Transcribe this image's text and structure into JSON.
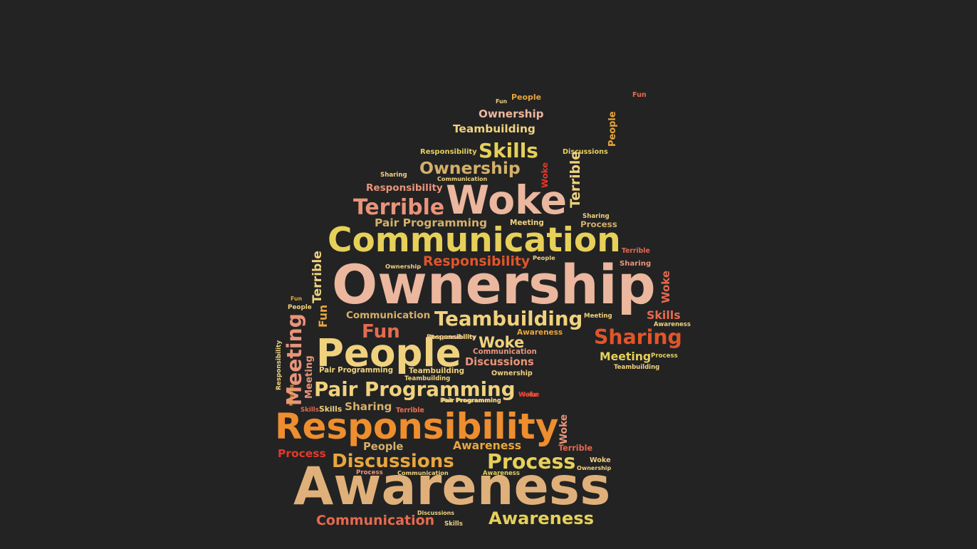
{
  "colors": {
    "background": "#232323",
    "cream": "#F0D27E",
    "yellow": "#E6D05A",
    "gold": "#E9A63C",
    "orange": "#EE8E2E",
    "burnt": "#E1552A",
    "coral": "#E56A50",
    "salmon": "#E9947A",
    "pink": "#EBB79E",
    "tan": "#E0B07A",
    "red": "#E5382B",
    "khaki": "#D4B06A"
  },
  "words": [
    {
      "text": "Awareness",
      "color": "tan"
    },
    {
      "text": "Ownership",
      "color": "pink"
    },
    {
      "text": "Responsibility",
      "color": "orange"
    },
    {
      "text": "Communication",
      "color": "yellow"
    },
    {
      "text": "People",
      "color": "cream"
    },
    {
      "text": "Woke",
      "color": "pink"
    },
    {
      "text": "Teambuilding",
      "color": "cream"
    },
    {
      "text": "Pair Programming",
      "color": "cream"
    },
    {
      "text": "Discussions",
      "color": "gold"
    },
    {
      "text": "Process",
      "color": "yellow"
    },
    {
      "text": "Sharing",
      "color": "burnt"
    },
    {
      "text": "Terrible",
      "color": "salmon"
    },
    {
      "text": "Ownership",
      "color": "khaki"
    },
    {
      "text": "Skills",
      "color": "yellow"
    },
    {
      "text": "Fun",
      "color": "coral"
    },
    {
      "text": "Meeting",
      "color": "salmon"
    },
    {
      "text": "Communication",
      "color": "coral"
    },
    {
      "text": "Awareness",
      "color": "yellow"
    },
    {
      "text": "Responsibility",
      "color": "burnt"
    },
    {
      "text": "Teambuilding",
      "color": "cream"
    },
    {
      "text": "Ownership",
      "color": "pink"
    },
    {
      "text": "Responsibility",
      "color": "salmon"
    },
    {
      "text": "Pair Programming",
      "color": "khaki"
    },
    {
      "text": "Communication",
      "color": "khaki"
    },
    {
      "text": "Discussions",
      "color": "salmon"
    },
    {
      "text": "Sharing",
      "color": "khaki"
    },
    {
      "text": "Woke",
      "color": "cream"
    },
    {
      "text": "Meeting",
      "color": "yellow"
    },
    {
      "text": "Awareness",
      "color": "gold"
    },
    {
      "text": "Skills",
      "color": "coral"
    },
    {
      "text": "People",
      "color": "khaki"
    },
    {
      "text": "Terrible",
      "color": "cream"
    },
    {
      "text": "Process",
      "color": "red"
    },
    {
      "text": "Responsibility",
      "color": "yellow"
    },
    {
      "text": "Discussions",
      "color": "yellow"
    },
    {
      "text": "Sharing",
      "color": "cream"
    },
    {
      "text": "Pair Programming",
      "color": "cream"
    },
    {
      "text": "Teambuilding",
      "color": "cream"
    },
    {
      "text": "Communication",
      "color": "salmon"
    },
    {
      "text": "Responsibility",
      "color": "pink"
    },
    {
      "text": "Ownership",
      "color": "cream"
    },
    {
      "text": "Meeting",
      "color": "cream"
    },
    {
      "text": "Terrible",
      "color": "coral"
    },
    {
      "text": "Meeting",
      "color": "cream"
    },
    {
      "text": "Terrible",
      "color": "coral"
    },
    {
      "text": "Sharing",
      "color": "salmon"
    },
    {
      "text": "Woke",
      "color": "coral"
    },
    {
      "text": "Awareness",
      "color": "gold"
    },
    {
      "text": "Awareness",
      "color": "cream"
    },
    {
      "text": "Process",
      "color": "yellow"
    },
    {
      "text": "Teambuilding",
      "color": "cream"
    },
    {
      "text": "Woke",
      "color": "coral"
    },
    {
      "text": "Sharing",
      "color": "cream"
    },
    {
      "text": "Communication",
      "color": "cream"
    },
    {
      "text": "People",
      "color": "cream"
    },
    {
      "text": "Ownership",
      "color": "cream"
    },
    {
      "text": "Fun",
      "color": "cream"
    },
    {
      "text": "People",
      "color": "gold"
    },
    {
      "text": "Fun",
      "color": "gold"
    },
    {
      "text": "People",
      "color": "cream"
    },
    {
      "text": "Fun",
      "color": "coral"
    },
    {
      "text": "Skills",
      "color": "cream"
    },
    {
      "text": "Skills",
      "color": "coral"
    },
    {
      "text": "Pair Programming",
      "color": "cream"
    },
    {
      "text": "Terrible",
      "color": "coral"
    },
    {
      "text": "Woke",
      "color": "red"
    },
    {
      "text": "Process",
      "color": "salmon"
    },
    {
      "text": "Communication",
      "color": "cream"
    },
    {
      "text": "Awareness",
      "color": "yellow"
    },
    {
      "text": "Woke",
      "color": "cream"
    },
    {
      "text": "Ownership",
      "color": "cream"
    },
    {
      "text": "Discussions",
      "color": "cream"
    },
    {
      "text": "Skills",
      "color": "cream"
    },
    {
      "text": "Terrible",
      "color": "cream"
    },
    {
      "text": "Fun",
      "color": "gold"
    },
    {
      "text": "Woke",
      "color": "salmon"
    },
    {
      "text": "People",
      "color": "gold"
    },
    {
      "text": "Process",
      "color": "khaki"
    },
    {
      "text": "Responsibility",
      "color": "cream"
    },
    {
      "text": "Meeting",
      "color": "salmon"
    },
    {
      "text": "Responsibility",
      "color": "cream"
    },
    {
      "text": "Pair Programming",
      "color": "cream"
    },
    {
      "text": "Teambuilding",
      "color": "cream"
    },
    {
      "text": "Woke",
      "color": "red"
    },
    {
      "text": "Terrible",
      "color": "coral"
    },
    {
      "text": "Meeting",
      "color": "gold"
    }
  ]
}
